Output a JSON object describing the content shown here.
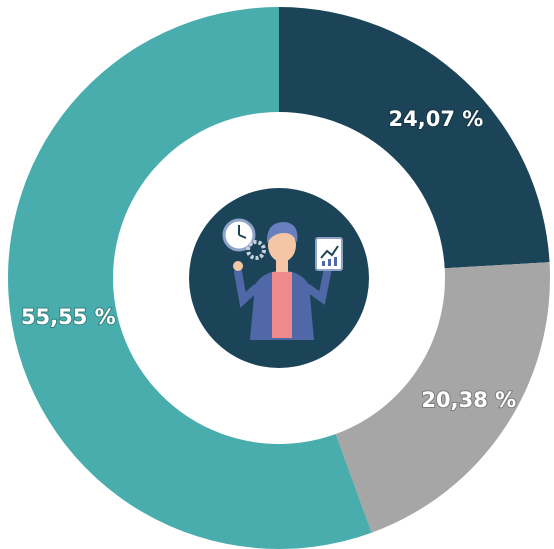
{
  "chart_data": {
    "type": "donut",
    "values": [
      24.07,
      20.38,
      55.55
    ],
    "value_labels": [
      "24,07 %",
      "20,38 %",
      "55,55 %"
    ],
    "colors": [
      "#1b4459",
      "#a6a6a6",
      "#4aadad"
    ]
  }
}
